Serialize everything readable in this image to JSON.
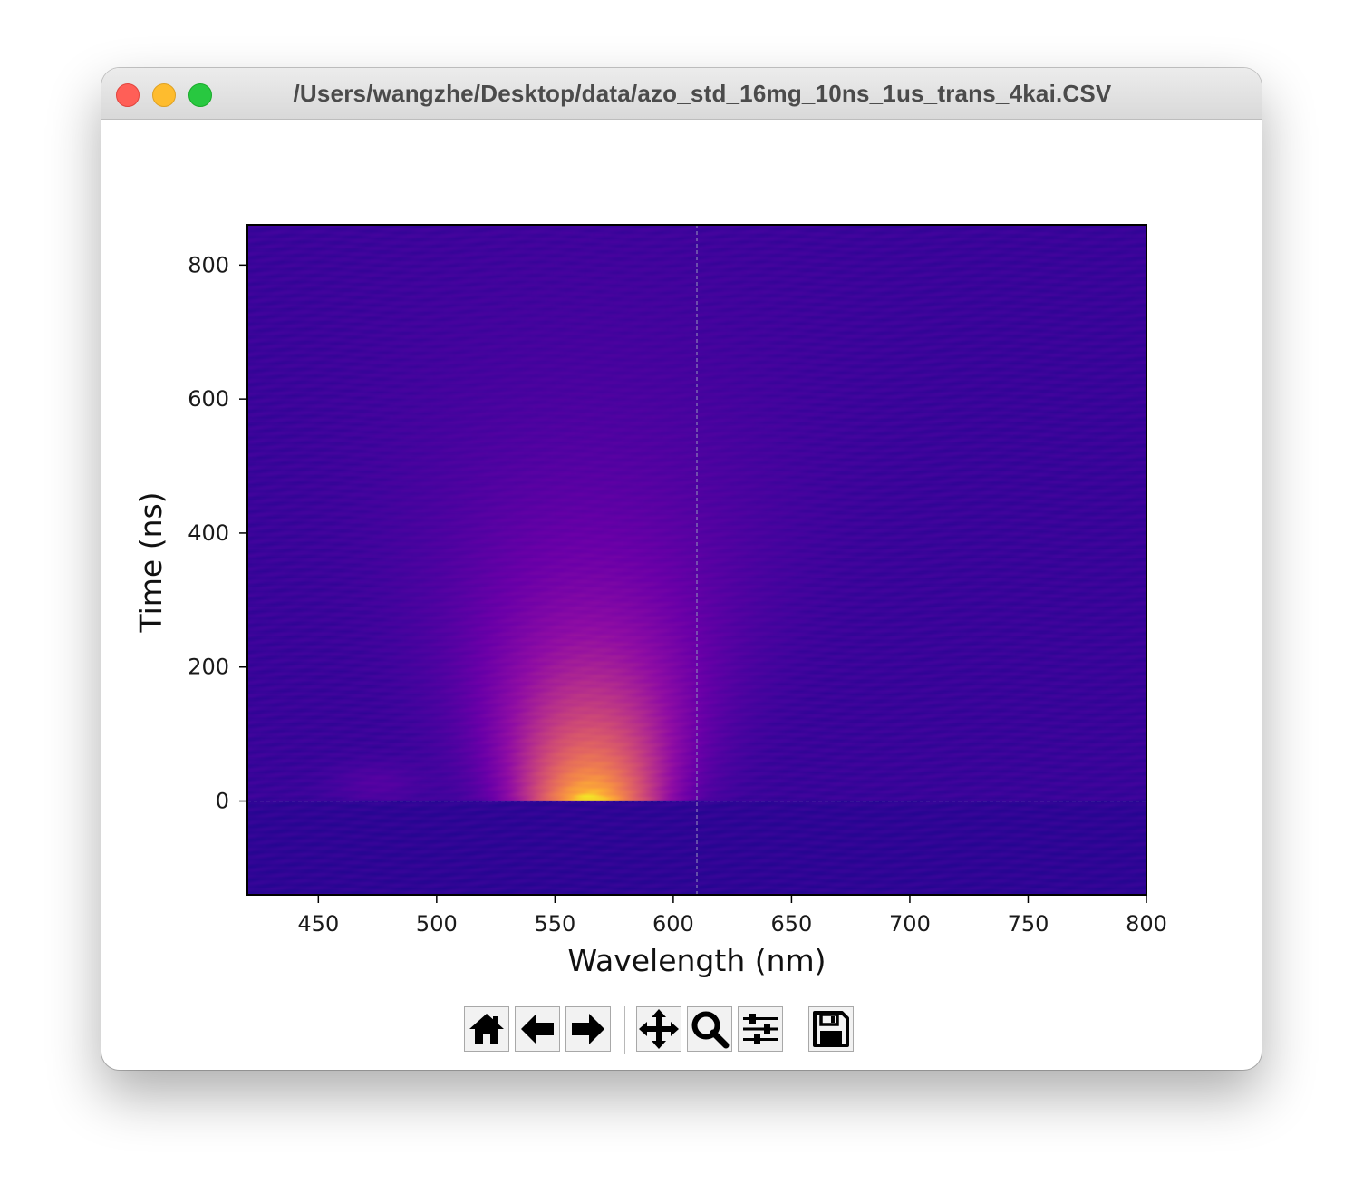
{
  "window": {
    "title": "/Users/wangzhe/Desktop/data/azo_std_16mg_10ns_1us_trans_4kai.CSV"
  },
  "chart_data": {
    "type": "heatmap",
    "title": "",
    "xlabel": "Wavelength (nm)",
    "ylabel": "Time (ns)",
    "xlim": [
      420,
      800
    ],
    "ylim": [
      -140,
      860
    ],
    "xticks": [
      "450",
      "500",
      "550",
      "600",
      "650",
      "700",
      "750",
      "800"
    ],
    "yticks": [
      "800",
      "600",
      "400",
      "200",
      "0"
    ],
    "colormap": "plasma",
    "grid": false,
    "crosshair": {
      "x": 610,
      "y": 0
    },
    "signal": {
      "peak_wavelength_nm": 565,
      "peak_time_ns": 0,
      "wavelength_halfwidth_nm": 30,
      "decay_time_ns": 200,
      "secondary_feature": {
        "wavelength_nm": 475,
        "time_ns": 25
      }
    }
  },
  "toolbar": {
    "buttons": [
      {
        "name": "home-button",
        "icon": "home-icon"
      },
      {
        "name": "back-button",
        "icon": "arrow-left-icon"
      },
      {
        "name": "forward-button",
        "icon": "arrow-right-icon"
      },
      {
        "name": "pan-button",
        "icon": "move-icon"
      },
      {
        "name": "zoom-button",
        "icon": "magnifier-icon"
      },
      {
        "name": "configure-subplots-button",
        "icon": "sliders-icon"
      },
      {
        "name": "save-button",
        "icon": "floppy-disk-icon"
      }
    ]
  }
}
